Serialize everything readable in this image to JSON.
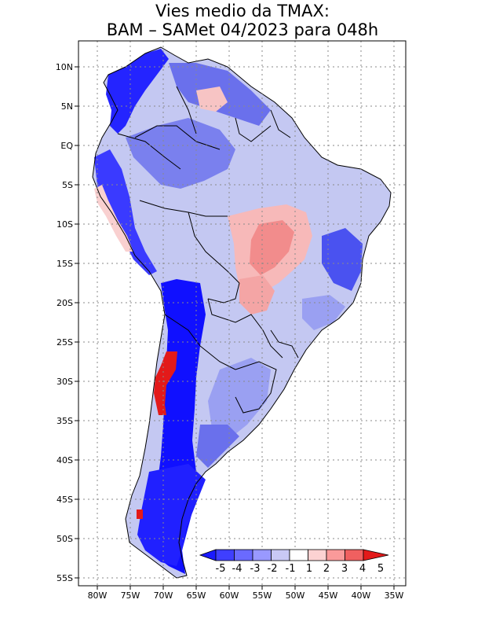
{
  "title": {
    "line1": "Vies medio da TMAX:",
    "line2": "BAM – SAMet 04/2023  para 048h"
  },
  "chart_data": {
    "type": "heatmap",
    "title": "Vies medio da TMAX: BAM – SAMet 04/2023 para 048h",
    "x_ticks": [
      "80W",
      "75W",
      "70W",
      "65W",
      "60W",
      "55W",
      "50W",
      "45W",
      "40W",
      "35W"
    ],
    "y_ticks": [
      "10N",
      "5N",
      "EQ",
      "5S",
      "10S",
      "15S",
      "20S",
      "25S",
      "30S",
      "35S",
      "40S",
      "45S",
      "50S",
      "55S"
    ],
    "xlim": [
      -83,
      -34
    ],
    "ylim": [
      -56,
      13
    ],
    "grid": true,
    "colorbar": {
      "labels": [
        "-5",
        "-4",
        "-3",
        "-2",
        "-1",
        "1",
        "2",
        "3",
        "4",
        "5"
      ],
      "colors": [
        "#1a1aff",
        "#3f3fff",
        "#6a6aff",
        "#9999ff",
        "#c9c9f5",
        "#ffffff",
        "#fcd2d2",
        "#fa9a9a",
        "#f06060",
        "#e31a1a"
      ]
    }
  }
}
